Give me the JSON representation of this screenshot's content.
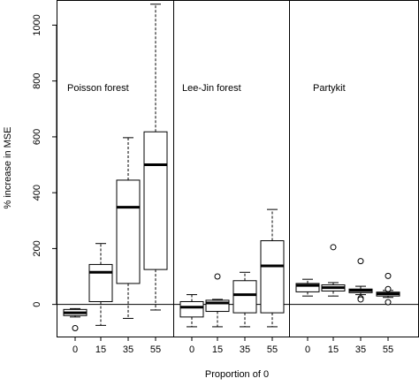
{
  "chart_data": {
    "type": "boxplot",
    "xlabel": "Proportion of 0",
    "ylabel": "% increase in MSE",
    "ylim": [
      -115,
      1090
    ],
    "y_ticks": [
      0,
      200,
      400,
      600,
      800,
      1000
    ],
    "x_tick_labels": [
      "0",
      "15",
      "35",
      "55"
    ],
    "reference_line_y": 0,
    "panels": [
      {
        "name": "Poisson forest",
        "boxes": [
          {
            "x": "0",
            "whisker_low": -45,
            "q1": -40,
            "median": -30,
            "q3": -18,
            "whisker_high": -15,
            "outliers": [
              -85
            ]
          },
          {
            "x": "15",
            "whisker_low": -75,
            "q1": 10,
            "median": 115,
            "q3": 143,
            "whisker_high": 218,
            "outliers": []
          },
          {
            "x": "35",
            "whisker_low": -50,
            "q1": 75,
            "median": 348,
            "q3": 445,
            "whisker_high": 597,
            "outliers": []
          },
          {
            "x": "55",
            "whisker_low": -20,
            "q1": 125,
            "median": 500,
            "q3": 618,
            "whisker_high": 1075,
            "outliers": []
          }
        ]
      },
      {
        "name": "Lee-Jin forest",
        "boxes": [
          {
            "x": "0",
            "whisker_low": -80,
            "q1": -45,
            "median": -10,
            "q3": 10,
            "whisker_high": 35,
            "outliers": []
          },
          {
            "x": "15",
            "whisker_low": -80,
            "q1": -25,
            "median": 5,
            "q3": 15,
            "whisker_high": 18,
            "outliers": [
              100
            ]
          },
          {
            "x": "35",
            "whisker_low": -80,
            "q1": -30,
            "median": 35,
            "q3": 85,
            "whisker_high": 115,
            "outliers": []
          },
          {
            "x": "55",
            "whisker_low": -80,
            "q1": -30,
            "median": 138,
            "q3": 228,
            "whisker_high": 340,
            "outliers": []
          }
        ]
      },
      {
        "name": "Partykit",
        "boxes": [
          {
            "x": "0",
            "whisker_low": 30,
            "q1": 45,
            "median": 68,
            "q3": 75,
            "whisker_high": 90,
            "outliers": []
          },
          {
            "x": "15",
            "whisker_low": 30,
            "q1": 48,
            "median": 60,
            "q3": 70,
            "whisker_high": 78,
            "outliers": [
              205
            ]
          },
          {
            "x": "35",
            "whisker_low": 35,
            "q1": 42,
            "median": 50,
            "q3": 55,
            "whisker_high": 65,
            "outliers": [
              155,
              22,
              18
            ]
          },
          {
            "x": "55",
            "whisker_low": 25,
            "q1": 30,
            "median": 38,
            "q3": 44,
            "whisker_high": 50,
            "outliers": [
              102,
              55,
              8
            ]
          }
        ]
      }
    ]
  }
}
